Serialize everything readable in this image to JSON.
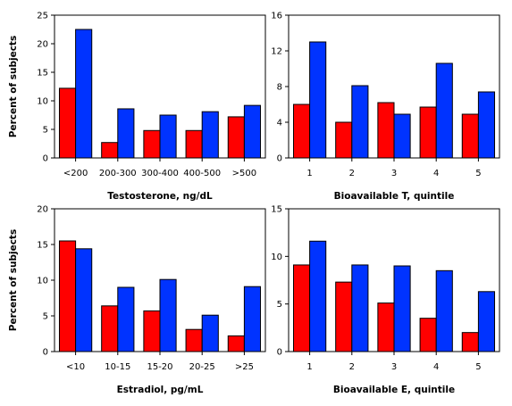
{
  "colors": {
    "series_a": "#ff0000",
    "series_b": "#0033ff",
    "axis": "#000000"
  },
  "chart_data": [
    {
      "type": "bar",
      "title": "",
      "xlabel": "Testosterone, ng/dL",
      "ylabel": "Percent of subjects",
      "categories": [
        "<200",
        "200-300",
        "300-400",
        "400-500",
        ">500"
      ],
      "series": [
        {
          "values": [
            12.2,
            2.7,
            4.8,
            4.8,
            7.2
          ]
        },
        {
          "values": [
            22.5,
            8.6,
            7.5,
            8.1,
            9.2
          ]
        }
      ],
      "ylim": [
        0,
        25
      ],
      "yticks": [
        0,
        5,
        10,
        15,
        20,
        25
      ],
      "grid": false
    },
    {
      "type": "bar",
      "title": "",
      "xlabel": "Bioavailable T, quintile",
      "ylabel": "",
      "categories": [
        "1",
        "2",
        "3",
        "4",
        "5"
      ],
      "series": [
        {
          "values": [
            6.0,
            4.0,
            6.2,
            5.7,
            4.9
          ]
        },
        {
          "values": [
            13.0,
            8.1,
            4.9,
            10.6,
            7.4
          ]
        }
      ],
      "ylim": [
        0,
        16
      ],
      "yticks": [
        0,
        4,
        8,
        12,
        16
      ],
      "grid": false
    },
    {
      "type": "bar",
      "title": "",
      "xlabel": "Estradiol, pg/mL",
      "ylabel": "Percent of subjects",
      "categories": [
        "<10",
        "10-15",
        "15-20",
        "20-25",
        ">25"
      ],
      "series": [
        {
          "values": [
            15.5,
            6.4,
            5.7,
            3.1,
            2.2
          ]
        },
        {
          "values": [
            14.4,
            9.0,
            10.1,
            5.1,
            9.1
          ]
        }
      ],
      "ylim": [
        0,
        20
      ],
      "yticks": [
        0,
        5,
        10,
        15,
        20
      ],
      "grid": false
    },
    {
      "type": "bar",
      "title": "",
      "xlabel": "Bioavailable E, quintile",
      "ylabel": "",
      "categories": [
        "1",
        "2",
        "3",
        "4",
        "5"
      ],
      "series": [
        {
          "values": [
            9.1,
            7.3,
            5.1,
            3.5,
            2.0
          ]
        },
        {
          "values": [
            11.6,
            9.1,
            9.0,
            8.5,
            6.3
          ]
        }
      ],
      "ylim": [
        0,
        15
      ],
      "yticks": [
        0,
        5,
        10,
        15
      ],
      "grid": false
    }
  ]
}
